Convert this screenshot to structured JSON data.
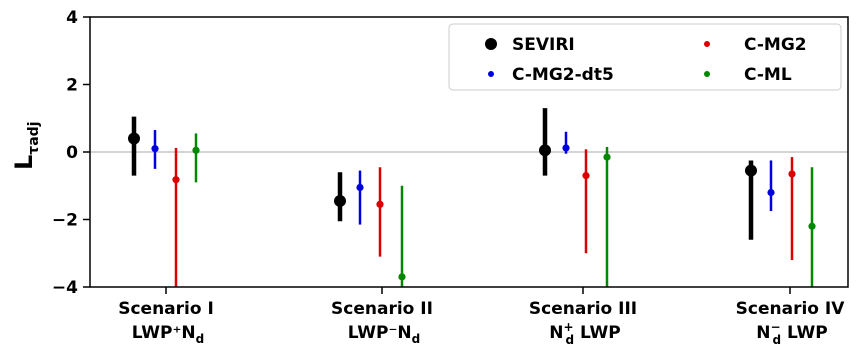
{
  "chart_data": {
    "type": "scatter",
    "subtype": "point-with-error-bars",
    "title": "",
    "xlabel": "",
    "ylabel": "L",
    "ylabel_subscript": "τadj",
    "ylim": [
      -4,
      4
    ],
    "yticks": [
      -4,
      -2,
      0,
      2,
      4
    ],
    "grid": false,
    "reference_line_y": 0,
    "legend_position": "top-right",
    "categories": [
      {
        "line1": "Scenario I",
        "line2": "LWP⁺N",
        "line2_sub": "d",
        "line2_sup": "",
        "line2_tail": ""
      },
      {
        "line1": "Scenario II",
        "line2": "LWP⁻N",
        "line2_sub": "d",
        "line2_sup": "",
        "line2_tail": ""
      },
      {
        "line1": "Scenario III",
        "line2": "N",
        "line2_sub": "d",
        "line2_sup": "+",
        "line2_tail": " LWP"
      },
      {
        "line1": "Scenario IV",
        "line2": "N",
        "line2_sub": "d",
        "line2_sup": "−",
        "line2_tail": " LWP"
      }
    ],
    "series": [
      {
        "name": "SEVIRI",
        "color": "#000000",
        "marker": "large",
        "points": [
          {
            "y": 0.4,
            "low": -0.7,
            "high": 1.05
          },
          {
            "y": -1.45,
            "low": -2.05,
            "high": -0.6
          },
          {
            "y": 0.05,
            "low": -0.7,
            "high": 1.3
          },
          {
            "y": -0.55,
            "low": -2.6,
            "high": -0.25
          }
        ]
      },
      {
        "name": "C-MG2-dt5",
        "color": "#0000dd",
        "marker": "small",
        "points": [
          {
            "y": 0.1,
            "low": -0.5,
            "high": 0.65
          },
          {
            "y": -1.05,
            "low": -2.15,
            "high": -0.55
          },
          {
            "y": 0.12,
            "low": -0.05,
            "high": 0.6
          },
          {
            "y": -1.2,
            "low": -1.75,
            "high": -0.25
          }
        ]
      },
      {
        "name": "C-MG2",
        "color": "#dd0000",
        "marker": "small",
        "points": [
          {
            "y": -0.82,
            "low": -4.0,
            "high": 0.12
          },
          {
            "y": -1.55,
            "low": -3.1,
            "high": -0.45
          },
          {
            "y": -0.7,
            "low": -3.0,
            "high": 0.08
          },
          {
            "y": -0.65,
            "low": -3.2,
            "high": -0.15
          }
        ]
      },
      {
        "name": "C-ML",
        "color": "#008800",
        "marker": "small",
        "points": [
          {
            "y": 0.05,
            "low": -0.9,
            "high": 0.55
          },
          {
            "y": -3.7,
            "low": -4.0,
            "high": -1.0
          },
          {
            "y": -0.15,
            "low": -4.0,
            "high": 0.15
          },
          {
            "y": -2.2,
            "low": -4.0,
            "high": -0.45
          }
        ]
      }
    ]
  }
}
